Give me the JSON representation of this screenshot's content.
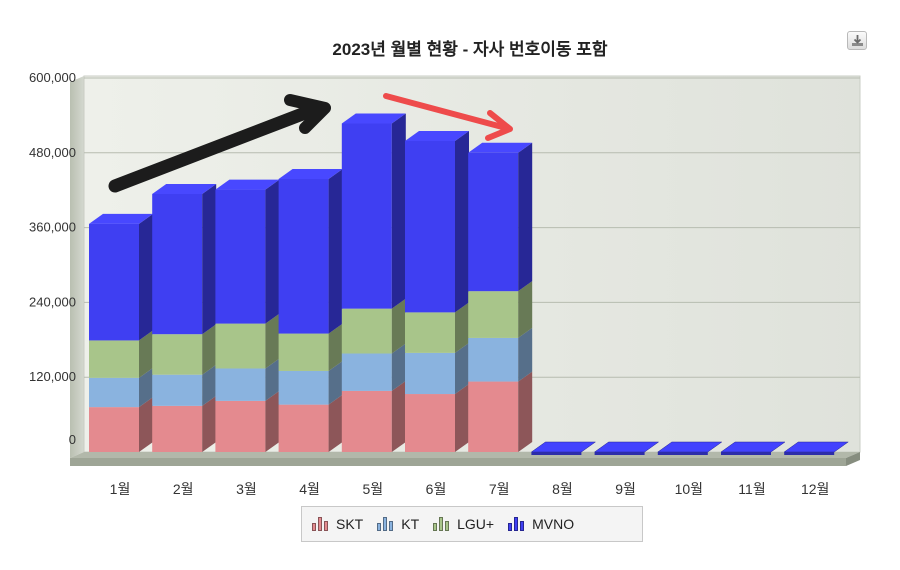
{
  "chart_data": {
    "type": "bar",
    "stacked": true,
    "three_d": true,
    "title": "2023년 월별 현황 - 자사 번호이동 포함",
    "categories": [
      "1월",
      "2월",
      "3월",
      "4월",
      "5월",
      "6월",
      "7월",
      "8월",
      "9월",
      "10월",
      "11월",
      "12월"
    ],
    "y_ticks": [
      "600,000",
      "480,000",
      "360,000",
      "240,000",
      "120,000",
      "0"
    ],
    "ylim": [
      0,
      600000
    ],
    "grid": true,
    "legend_position": "bottom",
    "series": [
      {
        "name": "SKT",
        "color": "#e48a8f",
        "values": [
          72000,
          74000,
          82000,
          76000,
          98000,
          93000,
          113000,
          0,
          0,
          0,
          0,
          0
        ]
      },
      {
        "name": "KT",
        "color": "#8ab3df",
        "values": [
          47000,
          50000,
          52000,
          54000,
          60000,
          66000,
          70000,
          0,
          0,
          0,
          0,
          0
        ]
      },
      {
        "name": "LGU+",
        "color": "#a8c58a",
        "values": [
          60000,
          65000,
          72000,
          60000,
          72000,
          65000,
          75000,
          0,
          0,
          0,
          0,
          0
        ]
      },
      {
        "name": "MVNO",
        "color": "#3f3ff2",
        "values": [
          187000,
          225000,
          215000,
          248000,
          297000,
          275000,
          222000,
          0,
          0,
          0,
          0,
          0
        ]
      }
    ]
  },
  "annotations": [
    {
      "color": "#1c1c1c"
    },
    {
      "color": "#ee4b4b"
    }
  ],
  "toolbar": {
    "export_icon": "download-icon"
  }
}
